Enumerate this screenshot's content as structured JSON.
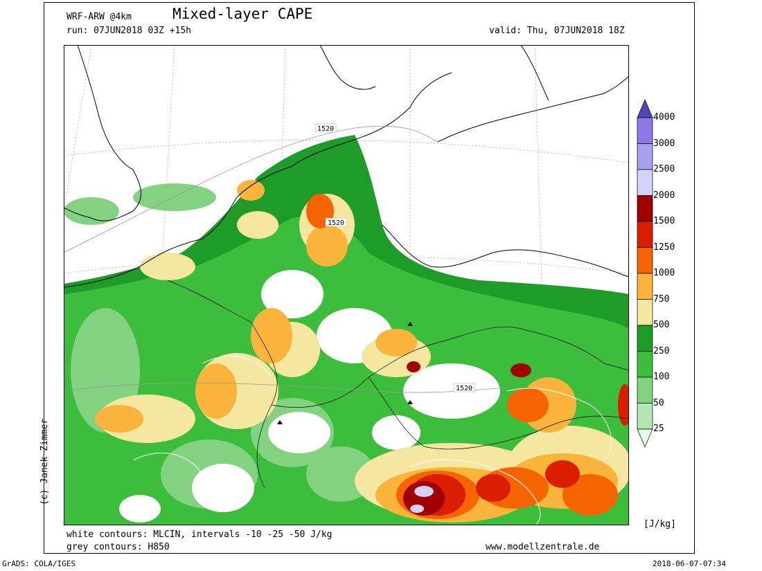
{
  "header": {
    "model": "WRF-ARW @4km",
    "title": "Mixed-layer CAPE",
    "run": "run: 07JUN2018 03Z +15h",
    "valid": "valid: Thu, 07JUN2018 18Z"
  },
  "footer": {
    "line1": "white contours: MLCIN, intervals -10 -25 -50 J/kg",
    "line2": "grey contours: H850",
    "website": "www.modellzentrale.de",
    "grads": "GrADS: COLA/IGES",
    "timestamp": "2018-06-07-07:34"
  },
  "copyright": "(c) Janek Zimmer",
  "map": {
    "contour_labels": [
      "1520",
      "1520",
      "1520"
    ]
  },
  "colorbar": {
    "unit": "[J/kg]",
    "labels": [
      "4000",
      "3000",
      "2500",
      "2000",
      "1500",
      "1250",
      "1000",
      "750",
      "500",
      "250",
      "100",
      "50",
      "25"
    ],
    "colors": [
      "#5046b9",
      "#8c78e6",
      "#aaa0f0",
      "#d2d2fa",
      "#a00000",
      "#dc1e00",
      "#f56400",
      "#fab43c",
      "#f5e6a0",
      "#1e9b28",
      "#3cbe3c",
      "#82d282",
      "#b4e6b4",
      "#e6f8e6"
    ]
  }
}
